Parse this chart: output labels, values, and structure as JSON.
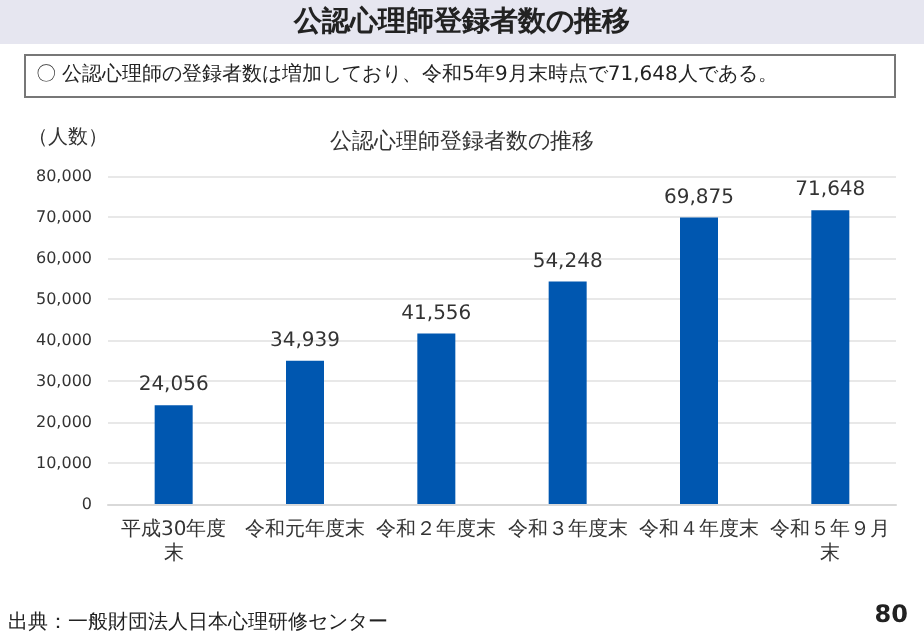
{
  "chart_data": {
    "type": "bar",
    "title": "公認心理師登録者数の推移",
    "subtitle": "〇 公認心理師の登録者数は増加しており、令和5年9月末時点で71,648人である。",
    "ylabel": "（人数）",
    "categories": [
      "平成30年度末",
      "令和元年度末",
      "令和２年度末",
      "令和３年度末",
      "令和４年度末",
      "令和５年９月末"
    ],
    "values": [
      24056,
      34939,
      41556,
      54248,
      69875,
      71648
    ],
    "color": "#0057b0",
    "value_labels": [
      "24,056",
      "34,939",
      "41,556",
      "54,248",
      "69,875",
      "71,648"
    ],
    "ylim": [
      0,
      80000
    ],
    "yticks": [
      0,
      {
        "value": 10000,
        "label": "10,000"
      },
      {
        "value": 20000,
        "label": "20,000"
      },
      {
        "value": 30000,
        "label": "30,000"
      },
      {
        "value": 40000,
        "label": "40,000"
      },
      {
        "value": 50000,
        "label": "50,000"
      },
      {
        "value": 60000,
        "label": "60,000"
      },
      {
        "value": 70000,
        "label": "70,000"
      },
      {
        "value": 80000,
        "label": "80,000"
      }
    ],
    "grid": "y",
    "annotations": [
      "公認心理師登録者数の推移",
      "出典：一般財団法人日本心理研修センター",
      "80"
    ]
  }
}
